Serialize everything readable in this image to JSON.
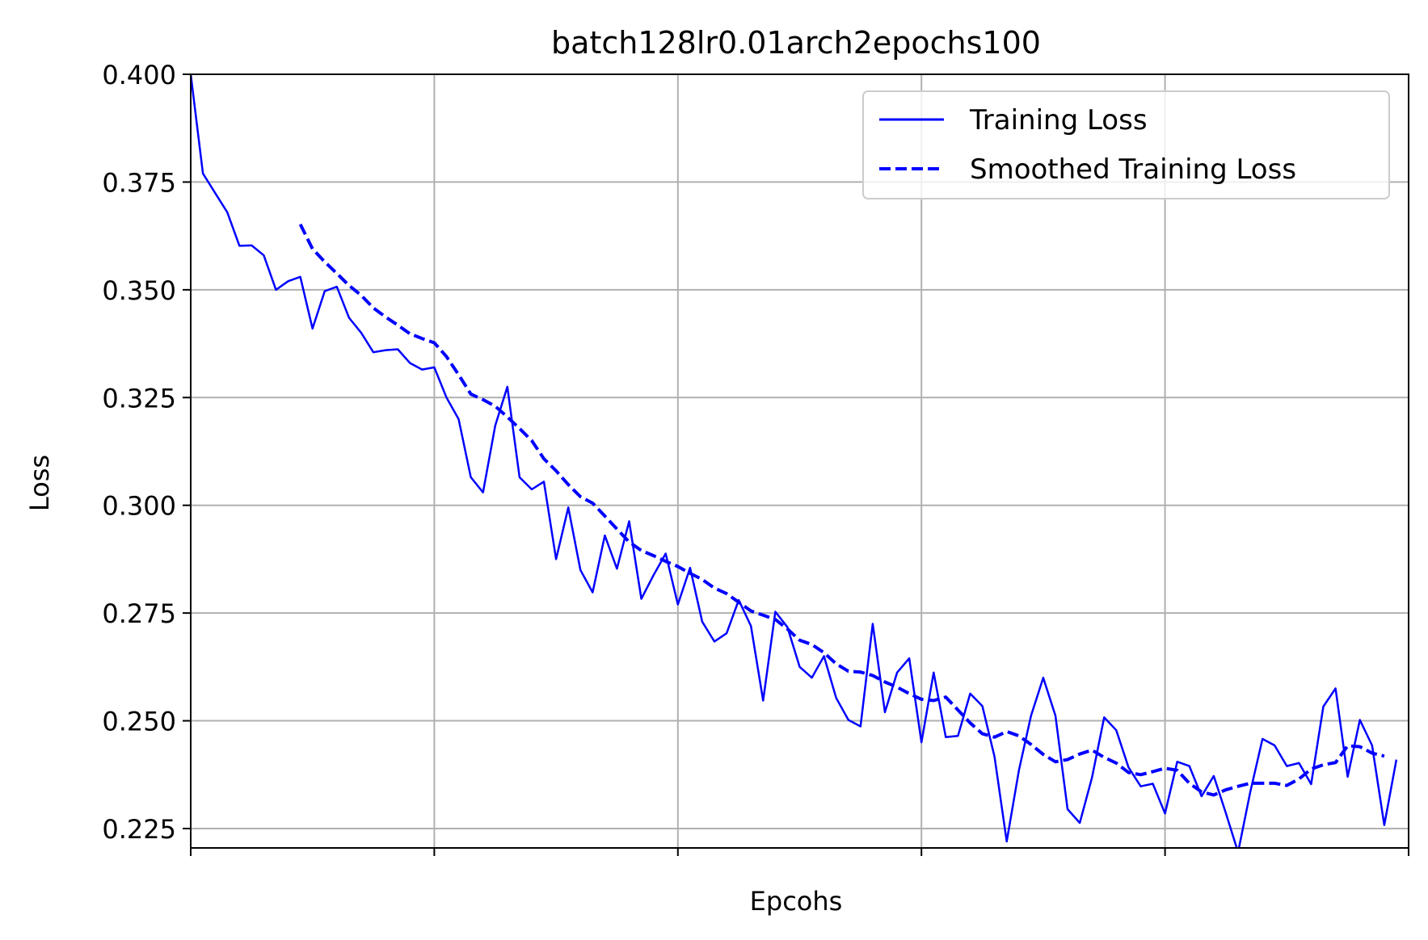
{
  "chart_data": {
    "type": "line",
    "title": "batch128lr0.01arch2epochs100",
    "xlabel": "Epcohs",
    "ylabel": "Loss",
    "xlim": [
      0,
      100
    ],
    "ylim": [
      0.2205,
      0.4
    ],
    "x_ticks": [
      0,
      20,
      40,
      60,
      80,
      100
    ],
    "x_tick_labels_shown": false,
    "y_ticks": [
      0.225,
      0.25,
      0.275,
      0.3,
      0.325,
      0.35,
      0.375,
      0.4
    ],
    "y_tick_labels": [
      "0.225",
      "0.250",
      "0.275",
      "0.300",
      "0.325",
      "0.350",
      "0.375",
      "0.400"
    ],
    "grid": true,
    "legend_position": "top-right",
    "line_color": "#0000ff",
    "grid_color": "#b0b0b0",
    "series": [
      {
        "name": "Training Loss",
        "style": "solid",
        "x_start": 0,
        "values": [
          0.4,
          0.377,
          0.3725,
          0.368,
          0.3602,
          0.3603,
          0.358,
          0.35,
          0.352,
          0.353,
          0.341,
          0.3497,
          0.3507,
          0.3435,
          0.34,
          0.3355,
          0.336,
          0.3362,
          0.333,
          0.3315,
          0.332,
          0.325,
          0.32,
          0.3065,
          0.303,
          0.3185,
          0.3275,
          0.3065,
          0.3037,
          0.3055,
          0.2875,
          0.2995,
          0.285,
          0.2798,
          0.293,
          0.2853,
          0.2963,
          0.2783,
          0.2838,
          0.2888,
          0.277,
          0.2855,
          0.273,
          0.2684,
          0.2703,
          0.278,
          0.272,
          0.2547,
          0.2753,
          0.2717,
          0.2625,
          0.26,
          0.265,
          0.2553,
          0.2502,
          0.2487,
          0.2725,
          0.252,
          0.2612,
          0.2645,
          0.245,
          0.2612,
          0.2462,
          0.2465,
          0.2563,
          0.2534,
          0.2417,
          0.222,
          0.2385,
          0.2512,
          0.26,
          0.2512,
          0.2295,
          0.2263,
          0.2368,
          0.2508,
          0.2478,
          0.2392,
          0.2348,
          0.2354,
          0.2285,
          0.2405,
          0.2395,
          0.2325,
          0.2372,
          0.2285,
          0.2195,
          0.2335,
          0.2458,
          0.2443,
          0.2395,
          0.2402,
          0.2353,
          0.2533,
          0.2575,
          0.237,
          0.2502,
          0.2443,
          0.2258,
          0.241
        ]
      },
      {
        "name": "Smoothed Training Loss",
        "style": "dashed",
        "x_start": 9,
        "values": [
          0.3652,
          0.3595,
          0.3565,
          0.3538,
          0.351,
          0.3487,
          0.3458,
          0.3437,
          0.3418,
          0.3398,
          0.3387,
          0.3377,
          0.3345,
          0.3303,
          0.3258,
          0.3245,
          0.323,
          0.3205,
          0.3178,
          0.315,
          0.3108,
          0.308,
          0.3048,
          0.302,
          0.3005,
          0.2975,
          0.2945,
          0.2915,
          0.2895,
          0.2883,
          0.287,
          0.2858,
          0.2842,
          0.2828,
          0.2808,
          0.2795,
          0.2775,
          0.2755,
          0.2745,
          0.2735,
          0.2713,
          0.2687,
          0.2677,
          0.2658,
          0.2632,
          0.2615,
          0.2613,
          0.2605,
          0.259,
          0.2578,
          0.2563,
          0.255,
          0.2547,
          0.2555,
          0.2525,
          0.2495,
          0.247,
          0.2462,
          0.2475,
          0.2465,
          0.2445,
          0.2422,
          0.2405,
          0.241,
          0.2423,
          0.2432,
          0.2415,
          0.2402,
          0.238,
          0.2375,
          0.2382,
          0.239,
          0.2385,
          0.2355,
          0.2335,
          0.2328,
          0.234,
          0.2348,
          0.2355,
          0.2355,
          0.2355,
          0.235,
          0.2365,
          0.2388,
          0.2398,
          0.2403,
          0.2442,
          0.244,
          0.2425,
          0.2418
        ]
      }
    ]
  }
}
